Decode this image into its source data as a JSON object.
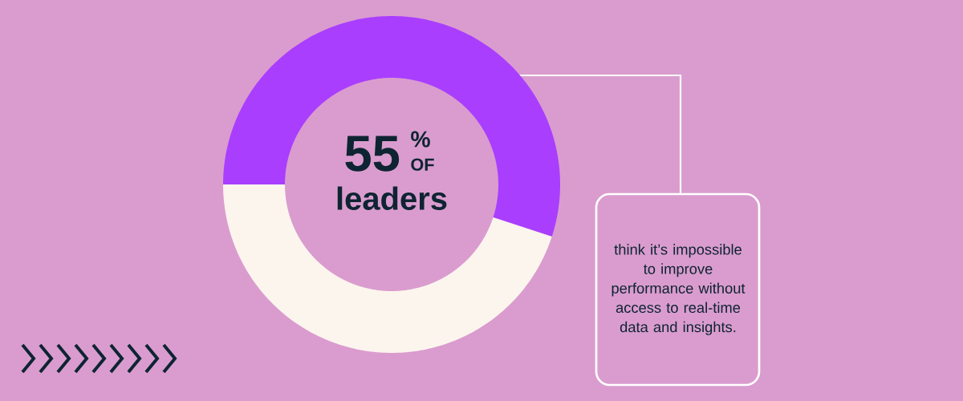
{
  "chart_data": {
    "type": "donut",
    "categories": [
      null,
      null
    ],
    "values": [
      55,
      45
    ],
    "colors": [
      "#a93efe",
      "#fcf5ee"
    ],
    "annotations": [
      "55",
      "%",
      "OF",
      "leaders",
      "think it’s impossible to improve performance without access to real-time data and insights."
    ]
  }
}
